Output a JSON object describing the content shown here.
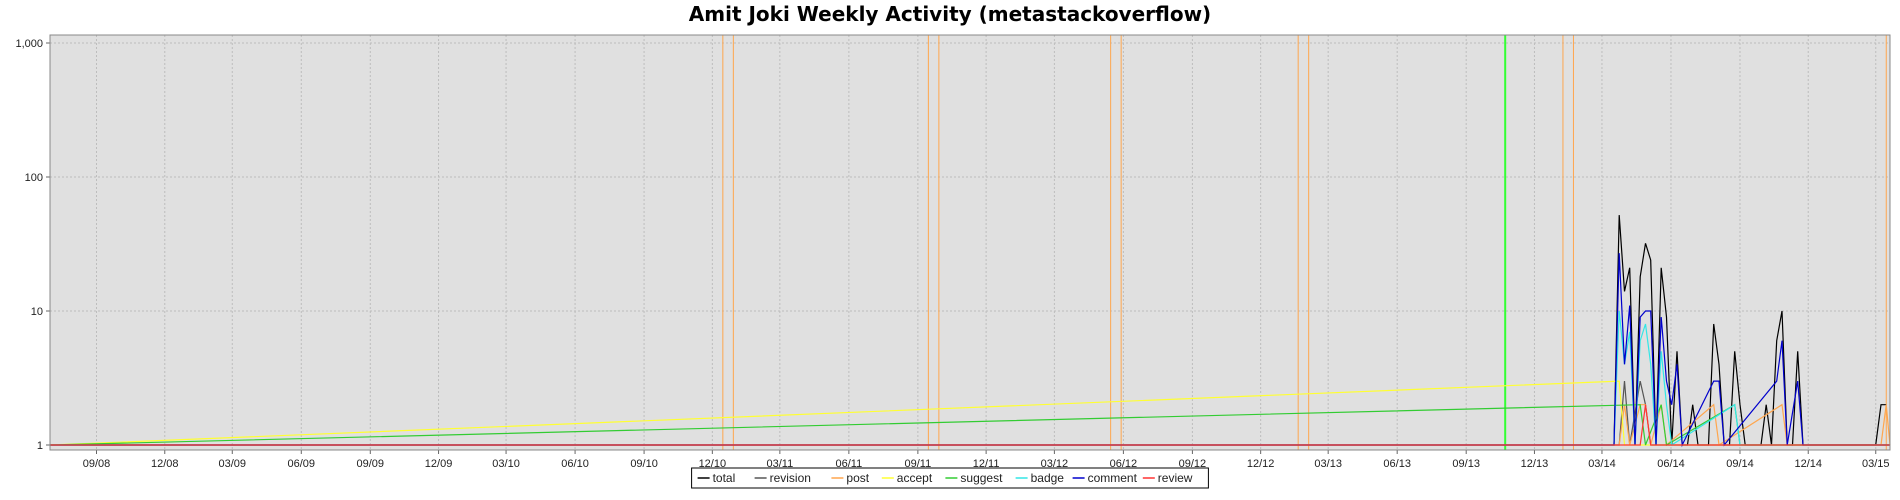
{
  "chart_data": {
    "type": "line",
    "title": "Amit Joki Weekly Activity (metastackoverflow)",
    "xlabel": "",
    "ylabel": "",
    "y_scale": "log",
    "ylim": [
      1,
      1000
    ],
    "y_ticks": [
      {
        "value": 1,
        "label": "1"
      },
      {
        "value": 10,
        "label": "10"
      },
      {
        "value": 100,
        "label": "100"
      },
      {
        "value": 1000,
        "label": "1,000"
      }
    ],
    "xlim": [
      "2008-07-01",
      "2015-03-20"
    ],
    "x_ticks": [
      {
        "date": "2008-09-01",
        "label": "09/08"
      },
      {
        "date": "2008-12-01",
        "label": "12/08"
      },
      {
        "date": "2009-03-01",
        "label": "03/09"
      },
      {
        "date": "2009-06-01",
        "label": "06/09"
      },
      {
        "date": "2009-09-01",
        "label": "09/09"
      },
      {
        "date": "2009-12-01",
        "label": "12/09"
      },
      {
        "date": "2010-03-01",
        "label": "03/10"
      },
      {
        "date": "2010-06-01",
        "label": "06/10"
      },
      {
        "date": "2010-09-01",
        "label": "09/10"
      },
      {
        "date": "2010-12-01",
        "label": "12/10"
      },
      {
        "date": "2011-03-01",
        "label": "03/11"
      },
      {
        "date": "2011-06-01",
        "label": "06/11"
      },
      {
        "date": "2011-09-01",
        "label": "09/11"
      },
      {
        "date": "2011-12-01",
        "label": "12/11"
      },
      {
        "date": "2012-03-01",
        "label": "03/12"
      },
      {
        "date": "2012-06-01",
        "label": "06/12"
      },
      {
        "date": "2012-09-01",
        "label": "09/12"
      },
      {
        "date": "2012-12-01",
        "label": "12/12"
      },
      {
        "date": "2013-03-01",
        "label": "03/13"
      },
      {
        "date": "2013-06-01",
        "label": "06/13"
      },
      {
        "date": "2013-09-01",
        "label": "09/13"
      },
      {
        "date": "2013-12-01",
        "label": "12/13"
      },
      {
        "date": "2014-03-01",
        "label": "03/14"
      },
      {
        "date": "2014-06-01",
        "label": "06/14"
      },
      {
        "date": "2014-09-01",
        "label": "09/14"
      },
      {
        "date": "2014-12-01",
        "label": "12/14"
      },
      {
        "date": "2015-03-01",
        "label": "03/15"
      }
    ],
    "grid": true,
    "legend_position": "bottom-center",
    "event_markers": [
      {
        "date": "2010-12-15",
        "color": "#ffa64d"
      },
      {
        "date": "2010-12-29",
        "color": "#ffa64d"
      },
      {
        "date": "2011-09-15",
        "color": "#ffa64d"
      },
      {
        "date": "2011-09-29",
        "color": "#ffa64d"
      },
      {
        "date": "2012-05-15",
        "color": "#ffa64d"
      },
      {
        "date": "2012-05-29",
        "color": "#ffa64d"
      },
      {
        "date": "2013-01-20",
        "color": "#ffa64d"
      },
      {
        "date": "2013-02-03",
        "color": "#ffa64d"
      },
      {
        "date": "2013-10-23",
        "color": "#33ff33"
      },
      {
        "date": "2014-01-08",
        "color": "#ffa64d"
      },
      {
        "date": "2014-01-22",
        "color": "#ffa64d"
      },
      {
        "date": "2015-03-15",
        "color": "#ffa64d"
      }
    ],
    "series": [
      {
        "name": "total",
        "color": "#000000",
        "points": [
          [
            "2008-07-01",
            1
          ],
          [
            "2014-03-17",
            1
          ],
          [
            "2014-03-24",
            52
          ],
          [
            "2014-03-31",
            14
          ],
          [
            "2014-04-07",
            21
          ],
          [
            "2014-04-14",
            1
          ],
          [
            "2014-04-21",
            18
          ],
          [
            "2014-04-28",
            32
          ],
          [
            "2014-05-05",
            24
          ],
          [
            "2014-05-12",
            1
          ],
          [
            "2014-05-19",
            21
          ],
          [
            "2014-05-26",
            9
          ],
          [
            "2014-06-02",
            1
          ],
          [
            "2014-06-09",
            5
          ],
          [
            "2014-06-16",
            1
          ],
          [
            "2014-06-23",
            1
          ],
          [
            "2014-06-30",
            2
          ],
          [
            "2014-07-07",
            1
          ],
          [
            "2014-07-14",
            1
          ],
          [
            "2014-07-21",
            1
          ],
          [
            "2014-07-28",
            8
          ],
          [
            "2014-08-04",
            4
          ],
          [
            "2014-08-11",
            1
          ],
          [
            "2014-08-18",
            1
          ],
          [
            "2014-08-25",
            5
          ],
          [
            "2014-09-01",
            2
          ],
          [
            "2014-09-08",
            1
          ],
          [
            "2014-09-15",
            1
          ],
          [
            "2014-09-22",
            1
          ],
          [
            "2014-09-29",
            1
          ],
          [
            "2014-10-06",
            2
          ],
          [
            "2014-10-13",
            1
          ],
          [
            "2014-10-20",
            6
          ],
          [
            "2014-10-27",
            10
          ],
          [
            "2014-11-03",
            1
          ],
          [
            "2014-11-10",
            1
          ],
          [
            "2014-11-17",
            5
          ],
          [
            "2014-11-24",
            1
          ],
          [
            "2014-12-01",
            1
          ],
          [
            "2015-03-01",
            1
          ],
          [
            "2015-03-08",
            2
          ],
          [
            "2015-03-15",
            2
          ]
        ]
      },
      {
        "name": "revision",
        "color": "#555555",
        "points": [
          [
            "2008-07-01",
            1
          ],
          [
            "2014-03-24",
            1
          ],
          [
            "2014-03-31",
            3
          ],
          [
            "2014-04-07",
            1
          ],
          [
            "2014-04-21",
            3
          ],
          [
            "2014-04-28",
            2
          ],
          [
            "2014-05-05",
            1
          ],
          [
            "2015-03-20",
            1
          ]
        ]
      },
      {
        "name": "post",
        "color": "#ffa64d",
        "points": [
          [
            "2008-07-01",
            1
          ],
          [
            "2014-03-24",
            1
          ],
          [
            "2014-03-31",
            2
          ],
          [
            "2014-04-07",
            1
          ],
          [
            "2014-04-21",
            2
          ],
          [
            "2014-04-28",
            2
          ],
          [
            "2014-05-05",
            1
          ],
          [
            "2014-05-19",
            2
          ],
          [
            "2014-05-26",
            1
          ],
          [
            "2014-07-28",
            2
          ],
          [
            "2014-08-04",
            1
          ],
          [
            "2014-10-27",
            2
          ],
          [
            "2014-11-03",
            1
          ],
          [
            "2015-03-08",
            1
          ],
          [
            "2015-03-15",
            2
          ],
          [
            "2015-03-20",
            1
          ]
        ]
      },
      {
        "name": "accept",
        "color": "#ffff33",
        "points": [
          [
            "2008-07-01",
            1
          ],
          [
            "2014-03-24",
            3
          ],
          [
            "2014-03-31",
            1
          ],
          [
            "2015-03-20",
            1
          ]
        ]
      },
      {
        "name": "suggest",
        "color": "#33cc33",
        "points": [
          [
            "2008-07-01",
            1
          ],
          [
            "2014-04-21",
            2
          ],
          [
            "2014-04-28",
            1
          ],
          [
            "2014-05-19",
            2
          ],
          [
            "2014-05-26",
            1
          ],
          [
            "2014-08-25",
            2
          ],
          [
            "2014-09-01",
            1
          ],
          [
            "2015-03-20",
            1
          ]
        ]
      },
      {
        "name": "badge",
        "color": "#33e6e6",
        "points": [
          [
            "2008-07-01",
            1
          ],
          [
            "2014-03-17",
            1
          ],
          [
            "2014-03-24",
            10
          ],
          [
            "2014-03-31",
            4
          ],
          [
            "2014-04-07",
            7
          ],
          [
            "2014-04-14",
            1
          ],
          [
            "2014-04-21",
            6
          ],
          [
            "2014-04-28",
            8
          ],
          [
            "2014-05-05",
            4
          ],
          [
            "2014-05-12",
            1
          ],
          [
            "2014-05-19",
            5
          ],
          [
            "2014-05-26",
            2
          ],
          [
            "2014-06-02",
            1
          ],
          [
            "2014-08-25",
            2
          ],
          [
            "2014-09-01",
            1
          ],
          [
            "2015-03-20",
            1
          ]
        ]
      },
      {
        "name": "comment",
        "color": "#0000cc",
        "points": [
          [
            "2008-07-01",
            1
          ],
          [
            "2014-03-17",
            1
          ],
          [
            "2014-03-24",
            27
          ],
          [
            "2014-03-31",
            4
          ],
          [
            "2014-04-07",
            11
          ],
          [
            "2014-04-14",
            1
          ],
          [
            "2014-04-21",
            9
          ],
          [
            "2014-04-28",
            10
          ],
          [
            "2014-05-05",
            10
          ],
          [
            "2014-05-12",
            1
          ],
          [
            "2014-05-19",
            9
          ],
          [
            "2014-05-26",
            3
          ],
          [
            "2014-06-02",
            2
          ],
          [
            "2014-06-09",
            4
          ],
          [
            "2014-06-16",
            1
          ],
          [
            "2014-07-28",
            3
          ],
          [
            "2014-08-04",
            3
          ],
          [
            "2014-08-11",
            1
          ],
          [
            "2014-10-20",
            3
          ],
          [
            "2014-10-27",
            6
          ],
          [
            "2014-11-03",
            1
          ],
          [
            "2014-11-17",
            3
          ],
          [
            "2014-11-24",
            1
          ],
          [
            "2015-03-20",
            1
          ]
        ]
      },
      {
        "name": "review",
        "color": "#ff3333",
        "points": [
          [
            "2008-07-01",
            1
          ],
          [
            "2014-04-21",
            1
          ],
          [
            "2014-04-28",
            2
          ],
          [
            "2014-05-05",
            1
          ],
          [
            "2015-03-20",
            1
          ]
        ]
      }
    ]
  }
}
